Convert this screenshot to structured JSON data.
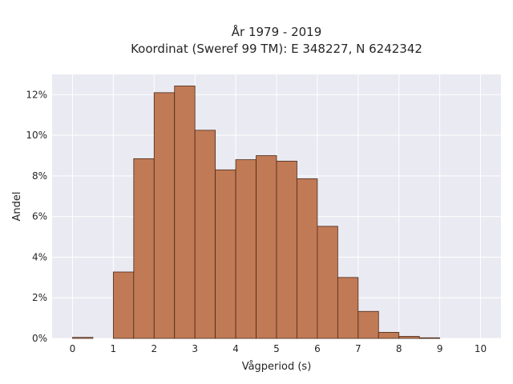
{
  "chart_data": {
    "type": "bar",
    "title": [
      "År 1979 - 2019",
      "Koordinat (Sweref 99 TM): E 348227, N 6242342"
    ],
    "xlabel": "Vågperiod (s)",
    "ylabel": "Andel",
    "xlim": [
      -0.5,
      10.5
    ],
    "ylim": [
      0,
      0.13
    ],
    "x_ticks": [
      0,
      1,
      2,
      3,
      4,
      5,
      6,
      7,
      8,
      9,
      10
    ],
    "y_ticks": [
      0,
      0.02,
      0.04,
      0.06,
      0.08,
      0.1,
      0.12
    ],
    "y_tick_labels": [
      "0%",
      "2%",
      "4%",
      "6%",
      "8%",
      "10%",
      "12%"
    ],
    "bin_width": 0.5,
    "bins": [
      {
        "x0": 0.0,
        "value": 0.0005
      },
      {
        "x0": 0.5,
        "value": 0.0
      },
      {
        "x0": 1.0,
        "value": 0.0327
      },
      {
        "x0": 1.5,
        "value": 0.0885
      },
      {
        "x0": 2.0,
        "value": 0.121
      },
      {
        "x0": 2.5,
        "value": 0.1243
      },
      {
        "x0": 3.0,
        "value": 0.1025
      },
      {
        "x0": 3.5,
        "value": 0.083
      },
      {
        "x0": 4.0,
        "value": 0.088
      },
      {
        "x0": 4.5,
        "value": 0.09
      },
      {
        "x0": 5.0,
        "value": 0.0873
      },
      {
        "x0": 5.5,
        "value": 0.0786
      },
      {
        "x0": 6.0,
        "value": 0.0552
      },
      {
        "x0": 6.5,
        "value": 0.03
      },
      {
        "x0": 7.0,
        "value": 0.0133
      },
      {
        "x0": 7.5,
        "value": 0.003
      },
      {
        "x0": 8.0,
        "value": 0.001
      },
      {
        "x0": 8.5,
        "value": 0.0003
      }
    ],
    "grid": true,
    "colors": {
      "bar_fill": "#c07a55",
      "bar_edge": "#4a2a1a",
      "plot_background": "#eaeaf2",
      "grid": "#ffffff"
    }
  }
}
